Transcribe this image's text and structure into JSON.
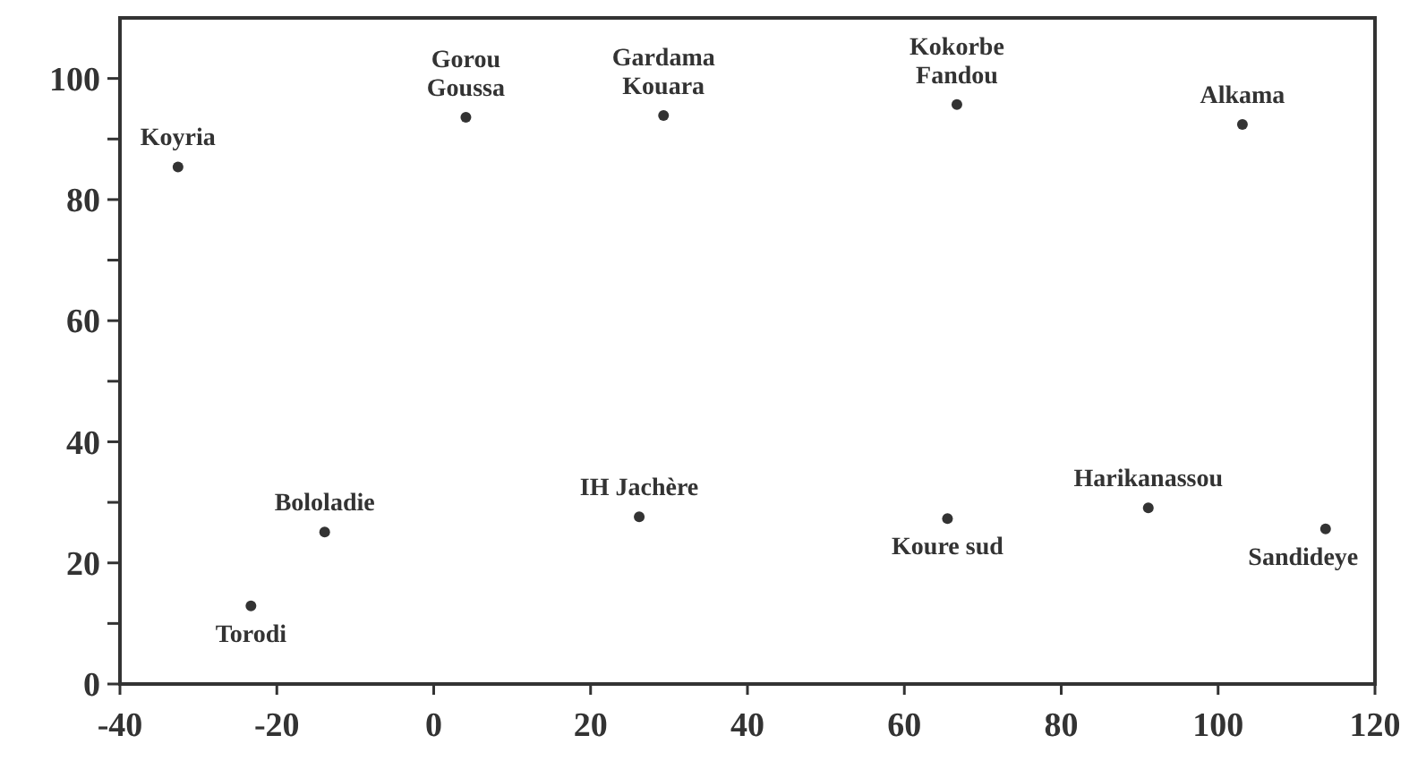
{
  "chart_data": {
    "type": "scatter",
    "marker": "circle",
    "grid": false,
    "xlim": [
      -40,
      120
    ],
    "xticks": [
      -40,
      -20,
      0,
      20,
      40,
      60,
      80,
      100,
      120
    ],
    "ylim": [
      0,
      110
    ],
    "yticks": [
      0,
      {
        "value": 10,
        "label": null
      },
      20,
      {
        "value": 30,
        "label": null
      },
      40,
      {
        "value": 50,
        "label": null
      },
      60,
      {
        "value": 70,
        "label": null
      },
      80,
      {
        "value": 90,
        "label": null
      },
      100
    ],
    "series": [
      {
        "color": "#333333",
        "x": [
          -32.6,
          4.1,
          29.3,
          66.7,
          103.1,
          -23.3,
          -13.9,
          26.2,
          65.5,
          91.1,
          113.7
        ],
        "values": [
          85.4,
          93.6,
          93.9,
          95.7,
          92.4,
          12.9,
          25.1,
          27.6,
          27.3,
          29.1,
          25.6
        ]
      }
    ],
    "annotations": [
      {
        "text": "Koyria",
        "x": -32.6,
        "y": 85.4
      },
      {
        "text": "Gorou\nGoussa",
        "x": 4.1,
        "y": 93.6
      },
      {
        "text": "Gardama\nKouara",
        "x": 29.3,
        "y": 93.9
      },
      {
        "text": "Kokorbe\nFandou",
        "x": 66.7,
        "y": 95.7
      },
      {
        "text": "Alkama",
        "x": 103.1,
        "y": 92.4
      },
      {
        "text": "Torodi",
        "x": -23.3,
        "y": 12.9
      },
      {
        "text": "Bololadie",
        "x": -13.9,
        "y": 25.1
      },
      {
        "text": "IH Jachère",
        "x": 26.2,
        "y": 27.6
      },
      {
        "text": "Koure sud",
        "x": 65.5,
        "y": 27.3
      },
      {
        "text": "Harikanassou",
        "x": 91.1,
        "y": 29.1
      },
      {
        "text": "Sandideye",
        "x": 113.7,
        "y": 25.6
      }
    ]
  }
}
